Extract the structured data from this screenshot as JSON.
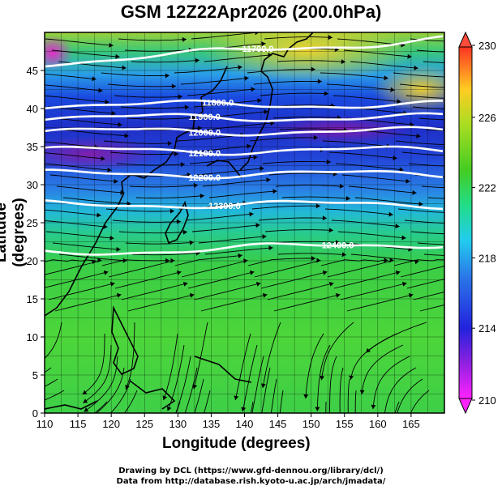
{
  "title": "GSM 12Z22Apr2026 (200.0hPa)",
  "map": {
    "lon_range": [
      110,
      170
    ],
    "lat_range": [
      0,
      50
    ],
    "x_ticks": [
      "110",
      "115",
      "120",
      "125",
      "130",
      "135",
      "140",
      "145",
      "150",
      "155",
      "160",
      "165"
    ],
    "y_ticks": [
      "0",
      "5",
      "10",
      "15",
      "20",
      "25",
      "30",
      "35",
      "40",
      "45"
    ],
    "x_label": "Longitude (degrees)",
    "y_label": "Latitude  (degrees)",
    "colorbar": {
      "ticks": [
        "210",
        "214",
        "218",
        "222",
        "226",
        "230"
      ],
      "min": 210,
      "max": 230
    },
    "contours": [
      {
        "label": "11700.0",
        "lat": 46.0
      },
      {
        "label": "11800.0",
        "lat": 40.5
      },
      {
        "label": "11900.0",
        "lat": 38.8
      },
      {
        "label": "12000.0",
        "lat": 37.0
      },
      {
        "label": "12100.0",
        "lat": 34.5
      },
      {
        "label": "12200.0",
        "lat": 31.4
      },
      {
        "label": "12300.0",
        "lat": 27.4
      },
      {
        "label": "12400.0",
        "lat": 21.0
      }
    ]
  },
  "footer": {
    "line1": "Drawing by DCL (https://www.gfd-dennou.org/library/dcl/)",
    "line2": "Data from http://database.rish.kyoto-u.ac.jp/arch/jmadata/"
  }
}
